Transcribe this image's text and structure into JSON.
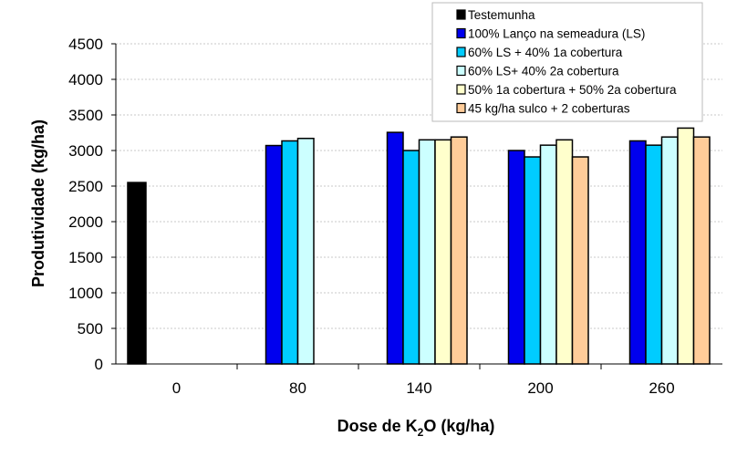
{
  "chart_data": {
    "type": "bar",
    "title": "",
    "xlabel": "Dose de K2O (kg/ha)",
    "xlabel_parts": {
      "pre": "Dose de K",
      "sub": "2",
      "post": "O (kg/ha)"
    },
    "ylabel": "Produtividade (kg/ha)",
    "ylim": [
      0,
      4500
    ],
    "yticks": [
      0,
      500,
      1000,
      1500,
      2000,
      2500,
      3000,
      3500,
      4000,
      4500
    ],
    "grid": true,
    "legend_position": "top-right",
    "categories": [
      "0",
      "80",
      "140",
      "200",
      "260"
    ],
    "series": [
      {
        "name": "Testemunha",
        "color": "#000000",
        "values": [
          2550,
          null,
          null,
          null,
          null
        ]
      },
      {
        "name": "100% Lanço na semeadura (LS)",
        "color": "#0000EE",
        "values": [
          null,
          3070,
          3255,
          3000,
          3135
        ]
      },
      {
        "name": "60% LS + 40% 1a cobertura",
        "color": "#00CCFF",
        "values": [
          null,
          3135,
          3000,
          2910,
          3075
        ]
      },
      {
        "name": "60% LS+ 40% 2a cobertura",
        "color": "#CCFFFF",
        "values": [
          null,
          3170,
          3150,
          3075,
          3190
        ]
      },
      {
        "name": "50% 1a cobertura + 50% 2a cobertura",
        "color": "#FFFFCC",
        "values": [
          null,
          null,
          3150,
          3150,
          3315
        ]
      },
      {
        "name": "45 kg/ha sulco + 2 coberturas",
        "color": "#FFCC99",
        "values": [
          null,
          null,
          3190,
          2910,
          3190
        ]
      }
    ]
  }
}
